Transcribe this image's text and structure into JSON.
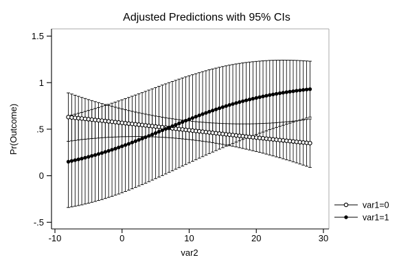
{
  "title": "Adjusted Predictions with 95% CIs",
  "axes": {
    "x": {
      "label": "var2",
      "ticks": [
        -10,
        0,
        10,
        20,
        30
      ],
      "range": [
        -10,
        31
      ]
    },
    "y": {
      "label": "Pr(Outcome)",
      "tick_labels": [
        "1.5",
        "1",
        ".5",
        "0",
        "-.5"
      ],
      "tick_values": [
        1.5,
        1.0,
        0.5,
        0.0,
        -0.5
      ],
      "range": [
        -0.65,
        1.58
      ]
    }
  },
  "legend": [
    {
      "label": "var1=0",
      "marker": "open-circle"
    },
    {
      "label": "var1=1",
      "marker": "filled-circle"
    }
  ],
  "colors": {
    "series": "#000000",
    "plot_border_gray": "#a8a8a8",
    "axis_black": "#000000",
    "background": "#ffffff"
  },
  "chart_data": {
    "type": "line",
    "title": "Adjusted Predictions with 95% CIs",
    "xlabel": "var2",
    "ylabel": "Pr(Outcome)",
    "ci_level": "95%",
    "grid": false,
    "legend_position": "right-outside",
    "x": [
      -8,
      -7,
      -6,
      -5,
      -4,
      -3,
      -2,
      -1,
      0,
      1,
      2,
      3,
      4,
      5,
      6,
      7,
      8,
      9,
      10,
      11,
      12,
      13,
      14,
      15,
      16,
      17,
      18,
      19,
      20,
      21,
      22,
      23,
      24,
      25,
      26,
      27,
      28
    ],
    "series": [
      {
        "name": "var1=0",
        "marker": "open-circle",
        "y": [
          0.63,
          0.622,
          0.615,
          0.607,
          0.599,
          0.592,
          0.584,
          0.576,
          0.568,
          0.56,
          0.553,
          0.545,
          0.537,
          0.529,
          0.521,
          0.513,
          0.505,
          0.497,
          0.489,
          0.481,
          0.473,
          0.465,
          0.457,
          0.449,
          0.441,
          0.433,
          0.425,
          0.417,
          0.41,
          0.402,
          0.394,
          0.387,
          0.379,
          0.372,
          0.364,
          0.357,
          0.35
        ],
        "ci_low": [
          0.37,
          0.379,
          0.389,
          0.396,
          0.402,
          0.408,
          0.413,
          0.416,
          0.419,
          0.42,
          0.421,
          0.421,
          0.419,
          0.417,
          0.413,
          0.409,
          0.403,
          0.396,
          0.389,
          0.38,
          0.371,
          0.361,
          0.349,
          0.337,
          0.323,
          0.309,
          0.293,
          0.277,
          0.26,
          0.242,
          0.223,
          0.203,
          0.182,
          0.161,
          0.138,
          0.114,
          0.09
        ],
        "ci_high": [
          0.89,
          0.865,
          0.841,
          0.818,
          0.796,
          0.775,
          0.755,
          0.736,
          0.718,
          0.7,
          0.684,
          0.669,
          0.655,
          0.641,
          0.629,
          0.617,
          0.607,
          0.597,
          0.589,
          0.581,
          0.575,
          0.569,
          0.565,
          0.561,
          0.559,
          0.557,
          0.557,
          0.557,
          0.559,
          0.562,
          0.565,
          0.57,
          0.576,
          0.583,
          0.59,
          0.599,
          0.61
        ]
      },
      {
        "name": "var1=1",
        "marker": "filled-circle",
        "y": [
          0.151,
          0.167,
          0.184,
          0.203,
          0.223,
          0.244,
          0.267,
          0.291,
          0.317,
          0.343,
          0.371,
          0.399,
          0.428,
          0.458,
          0.488,
          0.518,
          0.547,
          0.577,
          0.606,
          0.634,
          0.662,
          0.688,
          0.713,
          0.737,
          0.76,
          0.781,
          0.801,
          0.819,
          0.836,
          0.852,
          0.867,
          0.88,
          0.892,
          0.903,
          0.913,
          0.922,
          0.93
        ],
        "ci_low": [
          -0.341,
          -0.328,
          -0.313,
          -0.295,
          -0.276,
          -0.256,
          -0.233,
          -0.209,
          -0.183,
          -0.155,
          -0.126,
          -0.096,
          -0.064,
          -0.031,
          0.002,
          0.036,
          0.07,
          0.104,
          0.138,
          0.172,
          0.205,
          0.238,
          0.27,
          0.301,
          0.332,
          0.361,
          0.39,
          0.417,
          0.444,
          0.469,
          0.495,
          0.519,
          0.542,
          0.565,
          0.587,
          0.609,
          0.63
        ],
        "ci_high": [
          0.643,
          0.661,
          0.68,
          0.701,
          0.722,
          0.744,
          0.767,
          0.791,
          0.816,
          0.841,
          0.867,
          0.893,
          0.92,
          0.947,
          0.974,
          1.0,
          1.025,
          1.05,
          1.074,
          1.096,
          1.118,
          1.138,
          1.156,
          1.173,
          1.188,
          1.201,
          1.212,
          1.221,
          1.228,
          1.234,
          1.239,
          1.241,
          1.242,
          1.241,
          1.239,
          1.235,
          1.23
        ]
      }
    ]
  }
}
